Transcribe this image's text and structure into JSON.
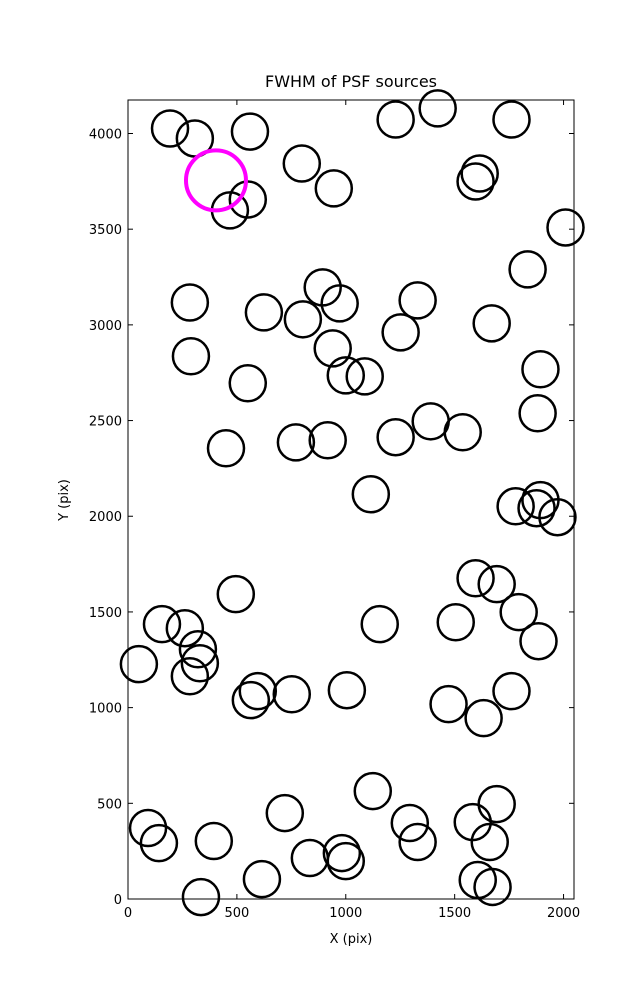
{
  "chart_data": {
    "type": "scatter",
    "title": "FWHM of PSF sources",
    "xlabel": "X (pix)",
    "ylabel": "Y (pix)",
    "xlim": [
      0,
      2048
    ],
    "ylim": [
      0,
      4175
    ],
    "xticks": [
      0,
      500,
      1000,
      1500,
      2000
    ],
    "yticks": [
      0,
      500,
      1000,
      1500,
      2000,
      2500,
      3000,
      3500,
      4000
    ],
    "series": [
      {
        "color": "#000000",
        "x": [
          193,
          307,
          560,
          1229,
          1422,
          1761,
          798,
          945,
          1615,
          1596,
          550,
          468,
          2009,
          1835,
          894,
          284,
          972,
          1330,
          624,
          803,
          1670,
          1252,
          940,
          289,
          1000,
          1087,
          1894,
          550,
          1881,
          1390,
          1537,
          1229,
          771,
          917,
          450,
          1115,
          1894,
          1780,
          1876,
          1972,
          495,
          1596,
          1693,
          1794,
          156,
          261,
          1156,
          1505,
          1885,
          321,
          50,
          330,
          284,
          596,
          564,
          752,
          1005,
          1761,
          1472,
          1633,
          1124,
          720,
          1693,
          92,
          1294,
          1583,
          142,
          394,
          1330,
          1661,
          982,
          835,
          1000,
          615,
          1606,
          1674,
          335
        ],
        "y": [
          4026,
          3974,
          4010,
          4073,
          4131,
          4073,
          3843,
          3713,
          3791,
          3749,
          3655,
          3598,
          3509,
          3290,
          3196,
          3117,
          3112,
          3128,
          3065,
          3029,
          3008,
          2961,
          2877,
          2836,
          2736,
          2731,
          2768,
          2695,
          2538,
          2496,
          2439,
          2413,
          2386,
          2397,
          2355,
          2115,
          2084,
          2052,
          2042,
          1995,
          1593,
          1676,
          1645,
          1499,
          1436,
          1415,
          1436,
          1446,
          1347,
          1305,
          1227,
          1232,
          1164,
          1086,
          1039,
          1070,
          1091,
          1086,
          1018,
          945,
          564,
          449,
          496,
          371,
          397,
          402,
          292,
          303,
          298,
          298,
          240,
          214,
          198,
          104,
          99,
          63,
          10
        ]
      },
      {
        "color": "#ff00ff",
        "x": [
          404
        ],
        "y": [
          3755
        ]
      }
    ]
  }
}
